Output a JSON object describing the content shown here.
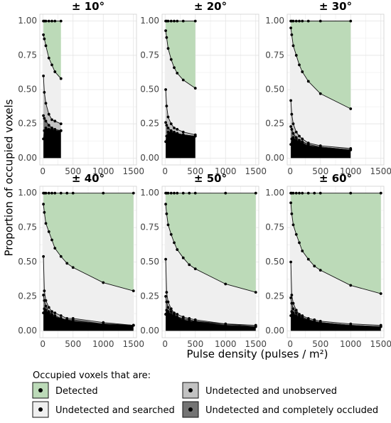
{
  "chart_data": {
    "type": "area",
    "ylabel": "Proportion of occupied voxels",
    "xlabel": "Pulse density (pulses / m²)",
    "x_ticks": [
      0,
      500,
      1000,
      1500
    ],
    "x_tick_labels": [
      "0",
      "500",
      "1000",
      "1500"
    ],
    "y_ticks": [
      0,
      0.25,
      0.5,
      0.75,
      1.0
    ],
    "y_tick_labels": [
      "0.00",
      "0.25",
      "0.50",
      "0.75",
      "1.00"
    ],
    "xlim": [
      -50,
      1550
    ],
    "ylim": [
      -0.05,
      1.05
    ],
    "grid": true,
    "legend": {
      "title": "Occupied voxels that are:",
      "placement": "bottom",
      "items": [
        {
          "label": "Detected",
          "color": "#bcdab8"
        },
        {
          "label": "Undetected and searched",
          "color": "#efefef"
        },
        {
          "label": "Undetected and unobserved",
          "color": "#c2c2c2"
        },
        {
          "label": "Undetected and completely occluded",
          "color": "#747474"
        }
      ]
    },
    "panels": [
      {
        "title": "± 10°",
        "x": [
          10,
          25,
          50,
          100,
          150,
          200,
          300
        ],
        "series": [
          {
            "values": [
              1.0,
              1.0,
              1.0,
              1.0,
              1.0,
              1.0,
              1.0
            ]
          },
          {
            "values": [
              0.9,
              0.87,
              0.82,
              0.73,
              0.68,
              0.63,
              0.58
            ]
          },
          {
            "values": [
              0.6,
              0.48,
              0.4,
              0.32,
              0.28,
              0.27,
              0.25
            ]
          },
          {
            "values": [
              0.31,
              0.29,
              0.27,
              0.24,
              0.22,
              0.21,
              0.2
            ]
          },
          {
            "values": [
              0.14,
              0.2,
              0.22,
              0.21,
              0.21,
              0.2,
              0.2
            ]
          }
        ]
      },
      {
        "title": "± 20°",
        "x": [
          10,
          25,
          50,
          100,
          150,
          200,
          300,
          500
        ],
        "series": [
          {
            "values": [
              1.0,
              1.0,
              1.0,
              1.0,
              1.0,
              1.0,
              1.0,
              1.0
            ]
          },
          {
            "values": [
              0.93,
              0.88,
              0.8,
              0.72,
              0.66,
              0.62,
              0.57,
              0.51
            ]
          },
          {
            "values": [
              0.5,
              0.38,
              0.3,
              0.25,
              0.22,
              0.21,
              0.19,
              0.17
            ]
          },
          {
            "values": [
              0.26,
              0.24,
              0.22,
              0.2,
              0.19,
              0.18,
              0.17,
              0.16
            ]
          },
          {
            "values": [
              0.12,
              0.16,
              0.19,
              0.19,
              0.18,
              0.18,
              0.17,
              0.16
            ]
          }
        ]
      },
      {
        "title": "± 30°",
        "x": [
          10,
          25,
          50,
          100,
          150,
          200,
          300,
          500,
          1000
        ],
        "series": [
          {
            "values": [
              1.0,
              1.0,
              1.0,
              1.0,
              1.0,
              1.0,
              1.0,
              1.0,
              1.0
            ]
          },
          {
            "values": [
              0.95,
              0.9,
              0.82,
              0.75,
              0.68,
              0.63,
              0.56,
              0.47,
              0.36
            ]
          },
          {
            "values": [
              0.42,
              0.32,
              0.25,
              0.19,
              0.16,
              0.14,
              0.11,
              0.09,
              0.07
            ]
          },
          {
            "values": [
              0.23,
              0.21,
              0.18,
              0.15,
              0.13,
              0.12,
              0.1,
              0.08,
              0.06
            ]
          },
          {
            "values": [
              0.1,
              0.14,
              0.15,
              0.13,
              0.12,
              0.11,
              0.09,
              0.08,
              0.06
            ]
          }
        ]
      },
      {
        "title": "± 40°",
        "x": [
          10,
          25,
          50,
          100,
          150,
          200,
          300,
          400,
          500,
          1000,
          1500
        ],
        "series": [
          {
            "values": [
              1.0,
              1.0,
              1.0,
              1.0,
              1.0,
              1.0,
              1.0,
              1.0,
              1.0,
              1.0,
              1.0
            ]
          },
          {
            "values": [
              0.92,
              0.86,
              0.78,
              0.72,
              0.66,
              0.6,
              0.54,
              0.49,
              0.46,
              0.35,
              0.29
            ]
          },
          {
            "values": [
              0.54,
              0.29,
              0.22,
              0.17,
              0.14,
              0.13,
              0.11,
              0.09,
              0.09,
              0.06,
              0.04
            ]
          },
          {
            "values": [
              0.26,
              0.22,
              0.18,
              0.14,
              0.12,
              0.11,
              0.09,
              0.08,
              0.08,
              0.05,
              0.04
            ]
          },
          {
            "values": [
              0.13,
              0.16,
              0.15,
              0.13,
              0.11,
              0.1,
              0.09,
              0.08,
              0.07,
              0.05,
              0.04
            ]
          }
        ]
      },
      {
        "title": "± 50°",
        "x": [
          10,
          25,
          50,
          100,
          150,
          200,
          300,
          400,
          500,
          1000,
          1500
        ],
        "series": [
          {
            "values": [
              1.0,
              1.0,
              1.0,
              1.0,
              1.0,
              1.0,
              1.0,
              1.0,
              1.0,
              1.0,
              1.0
            ]
          },
          {
            "values": [
              0.92,
              0.85,
              0.77,
              0.7,
              0.64,
              0.59,
              0.53,
              0.48,
              0.45,
              0.34,
              0.28
            ]
          },
          {
            "values": [
              0.52,
              0.28,
              0.21,
              0.16,
              0.13,
              0.12,
              0.1,
              0.09,
              0.08,
              0.05,
              0.04
            ]
          },
          {
            "values": [
              0.25,
              0.21,
              0.17,
              0.14,
              0.12,
              0.1,
              0.09,
              0.08,
              0.07,
              0.05,
              0.03
            ]
          },
          {
            "values": [
              0.12,
              0.15,
              0.14,
              0.12,
              0.11,
              0.1,
              0.08,
              0.07,
              0.07,
              0.04,
              0.03
            ]
          }
        ]
      },
      {
        "title": "± 60°",
        "x": [
          10,
          25,
          50,
          100,
          150,
          200,
          300,
          400,
          500,
          1000,
          1500
        ],
        "series": [
          {
            "values": [
              1.0,
              1.0,
              1.0,
              1.0,
              1.0,
              1.0,
              1.0,
              1.0,
              1.0,
              1.0,
              1.0
            ]
          },
          {
            "values": [
              0.93,
              0.85,
              0.77,
              0.7,
              0.64,
              0.58,
              0.52,
              0.47,
              0.44,
              0.33,
              0.27
            ]
          },
          {
            "values": [
              0.5,
              0.26,
              0.2,
              0.15,
              0.12,
              0.11,
              0.09,
              0.08,
              0.07,
              0.05,
              0.04
            ]
          },
          {
            "values": [
              0.24,
              0.2,
              0.16,
              0.13,
              0.11,
              0.1,
              0.08,
              0.07,
              0.06,
              0.04,
              0.03
            ]
          },
          {
            "values": [
              0.11,
              0.14,
              0.13,
              0.11,
              0.1,
              0.09,
              0.08,
              0.07,
              0.06,
              0.04,
              0.03
            ]
          }
        ]
      }
    ]
  }
}
